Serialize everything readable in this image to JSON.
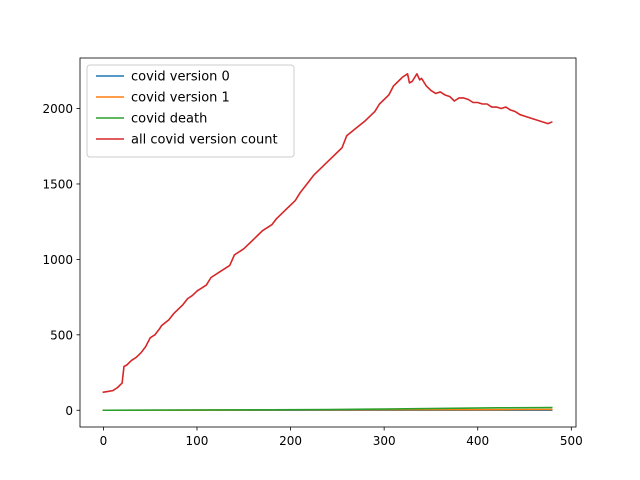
{
  "chart_data": {
    "type": "line",
    "title": "",
    "xlabel": "",
    "ylabel": "",
    "xlim": [
      -25,
      505
    ],
    "ylim": [
      -111,
      2335
    ],
    "xticks": [
      0,
      100,
      200,
      300,
      400,
      500
    ],
    "yticks": [
      0,
      500,
      1000,
      1500,
      2000
    ],
    "grid": false,
    "legend_position": "top-left",
    "series": [
      {
        "name": "covid version 0",
        "color": "#1f77b4",
        "x": [
          0,
          60,
          120,
          180,
          240,
          300,
          360,
          420,
          479
        ],
        "y": [
          0,
          0,
          0,
          0,
          0,
          0,
          0,
          0,
          0
        ]
      },
      {
        "name": "covid version 1",
        "color": "#ff7f0e",
        "x": [
          0,
          60,
          120,
          180,
          240,
          300,
          360,
          420,
          479
        ],
        "y": [
          0,
          0,
          1,
          2,
          3,
          4,
          4,
          4,
          5
        ]
      },
      {
        "name": "covid death",
        "color": "#2ca02c",
        "x": [
          0,
          60,
          120,
          180,
          240,
          300,
          360,
          420,
          479
        ],
        "y": [
          0,
          1,
          2,
          3,
          5,
          8,
          12,
          16,
          18
        ]
      },
      {
        "name": "all covid version count",
        "color": "#d62728",
        "x": [
          0,
          5,
          10,
          15,
          20,
          22,
          25,
          30,
          35,
          40,
          45,
          50,
          55,
          60,
          62,
          70,
          75,
          80,
          85,
          90,
          95,
          100,
          110,
          115,
          125,
          135,
          140,
          150,
          155,
          165,
          170,
          180,
          185,
          195,
          205,
          210,
          220,
          225,
          230,
          240,
          245,
          255,
          260,
          270,
          280,
          290,
          295,
          300,
          305,
          310,
          315,
          320,
          325,
          327,
          330,
          335,
          338,
          340,
          345,
          350,
          355,
          360,
          365,
          370,
          375,
          380,
          385,
          390,
          395,
          400,
          405,
          410,
          415,
          420,
          425,
          430,
          435,
          440,
          445,
          450,
          455,
          460,
          465,
          470,
          475,
          479
        ],
        "y": [
          120,
          125,
          130,
          150,
          180,
          290,
          300,
          330,
          350,
          380,
          420,
          480,
          500,
          540,
          560,
          600,
          640,
          670,
          700,
          740,
          760,
          790,
          830,
          880,
          920,
          960,
          1030,
          1070,
          1100,
          1160,
          1190,
          1230,
          1270,
          1330,
          1390,
          1440,
          1520,
          1560,
          1590,
          1650,
          1680,
          1740,
          1820,
          1870,
          1920,
          1980,
          2030,
          2060,
          2090,
          2150,
          2180,
          2210,
          2230,
          2170,
          2180,
          2230,
          2190,
          2200,
          2150,
          2120,
          2100,
          2110,
          2090,
          2080,
          2050,
          2070,
          2070,
          2060,
          2040,
          2040,
          2030,
          2030,
          2010,
          2010,
          2000,
          2010,
          1990,
          1980,
          1960,
          1950,
          1940,
          1930,
          1920,
          1910,
          1900,
          1910
        ]
      }
    ]
  }
}
